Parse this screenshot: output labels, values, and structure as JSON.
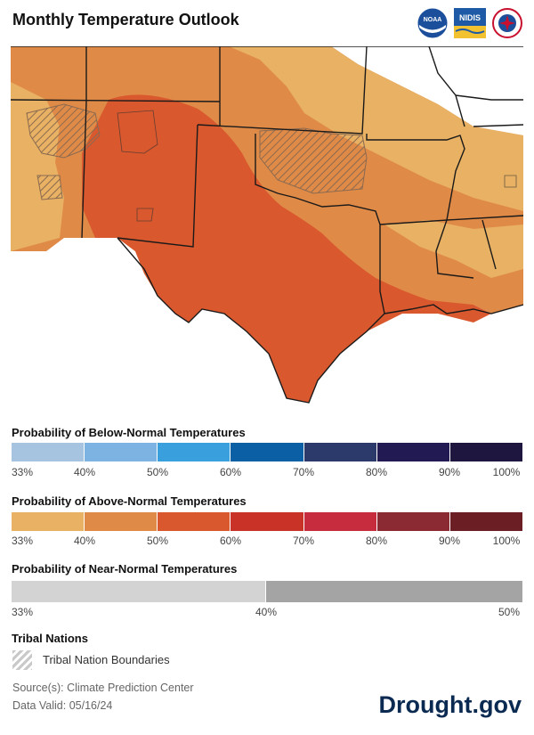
{
  "title": "Monthly Temperature Outlook",
  "logos": [
    {
      "name": "noaa-logo",
      "text": "NOAA"
    },
    {
      "name": "nidis-logo",
      "text": "NIDIS"
    },
    {
      "name": "nws-logo",
      "text": "NWS"
    }
  ],
  "map": {
    "region": "Southern Plains",
    "hatch_color": "#8a6a50",
    "colors": {
      "above_33_40": "#e8b163",
      "above_40_50": "#e08a47",
      "above_50_60": "#d9582d",
      "state_lines": "#1a1a1a"
    }
  },
  "below_normal": {
    "title": "Probability of Below-Normal Temperatures",
    "colors": [
      "#a6c4e0",
      "#7cb3e3",
      "#3a9fdd",
      "#0b5fa5",
      "#2b3a6b",
      "#221a52",
      "#1e163e"
    ],
    "ticks": [
      "33%",
      "40%",
      "50%",
      "60%",
      "70%",
      "80%",
      "90%",
      "100%"
    ]
  },
  "above_normal": {
    "title": "Probability of Above-Normal Temperatures",
    "colors": [
      "#e8b163",
      "#e08a47",
      "#d9582d",
      "#c83227",
      "#c62c3d",
      "#8b2a33",
      "#6b1f25"
    ],
    "ticks": [
      "33%",
      "40%",
      "50%",
      "60%",
      "70%",
      "80%",
      "90%",
      "100%"
    ]
  },
  "near_normal": {
    "title": "Probability of Near-Normal Temperatures",
    "colors": [
      "#d3d3d3",
      "#a4a4a4"
    ],
    "ticks": [
      "33%",
      "40%",
      "50%"
    ]
  },
  "tribal": {
    "title": "Tribal Nations",
    "label": "Tribal Nation Boundaries"
  },
  "footer": {
    "source": "Source(s): Climate Prediction Center",
    "valid": "Data Valid: 05/16/24",
    "brand": "Drought.gov"
  }
}
